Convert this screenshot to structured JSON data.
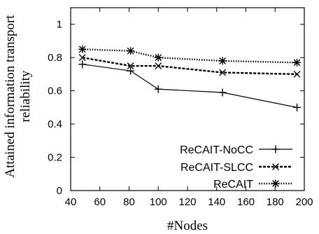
{
  "chart_data": {
    "type": "line",
    "xlabel": "#Nodes",
    "ylabel_lines": [
      "Attained information transport",
      "reliability"
    ],
    "xlim": [
      40,
      200
    ],
    "ylim": [
      0,
      1.1
    ],
    "xticks": [
      40,
      60,
      80,
      100,
      120,
      140,
      160,
      180,
      200
    ],
    "yticks": [
      0,
      0.2,
      0.4,
      0.6,
      0.8,
      1
    ],
    "ytick_labels": [
      "0",
      "0.2",
      "0.4",
      "0.6",
      "0.8",
      "1"
    ],
    "grid": false,
    "legend_position": "bottom-right",
    "series": [
      {
        "name": "ReCAIT-NoCC",
        "marker": "plus",
        "line_style": "solid",
        "x": [
          48,
          81,
          100,
          144,
          195
        ],
        "y": [
          0.76,
          0.72,
          0.61,
          0.59,
          0.5
        ]
      },
      {
        "name": "ReCAIT-SLCC",
        "marker": "cross",
        "line_style": "dashed",
        "x": [
          48,
          81,
          100,
          144,
          195
        ],
        "y": [
          0.8,
          0.75,
          0.75,
          0.71,
          0.7
        ]
      },
      {
        "name": "ReCAIT",
        "marker": "star",
        "line_style": "dotted",
        "x": [
          48,
          81,
          100,
          144,
          195
        ],
        "y": [
          0.85,
          0.84,
          0.8,
          0.78,
          0.77
        ]
      }
    ]
  }
}
